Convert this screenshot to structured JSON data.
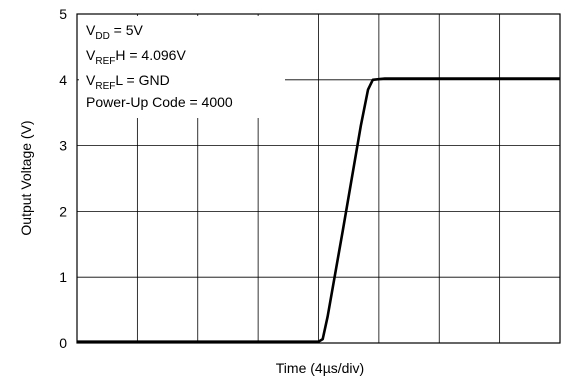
{
  "chart_data": {
    "type": "line",
    "xlabel": "Time (4µs/div)",
    "ylabel": "Output Voltage (V)",
    "ylim": [
      0,
      5
    ],
    "xlim": [
      0,
      8
    ],
    "yticks": [
      0,
      1,
      2,
      3,
      4,
      5
    ],
    "x_divisions": 8,
    "grid": true,
    "annotations": {
      "line1": {
        "main": "V",
        "sub": "DD",
        "rest": " = 5V"
      },
      "line2": {
        "main": "V",
        "sub": "REF",
        "rest": "H = 4.096V"
      },
      "line3": {
        "main": "V",
        "sub": "REF",
        "rest": "L = GND"
      },
      "line4": "Power-Up Code = 4000"
    },
    "series": [
      {
        "x": [
          0,
          4.0,
          4.07,
          4.15,
          4.4,
          4.7,
          4.82,
          4.9,
          5.1,
          8
        ],
        "y": [
          0.02,
          0.02,
          0.06,
          0.4,
          1.7,
          3.3,
          3.85,
          4.0,
          4.02,
          4.02
        ]
      }
    ]
  }
}
